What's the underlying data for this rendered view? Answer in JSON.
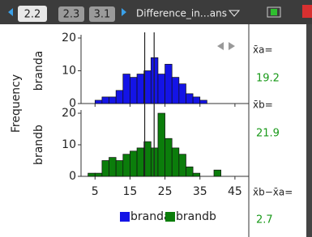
{
  "tabs": [
    "2.2",
    "2.3",
    "3.1"
  ],
  "document_title": "Difference_in…ans",
  "y_label": "Frequency",
  "chart_data": [
    {
      "type": "histogram",
      "bins": [
        5,
        7,
        9,
        11,
        13,
        15,
        17,
        19,
        21,
        23,
        25,
        27,
        29,
        31,
        33,
        35,
        37
      ],
      "series": [
        {
          "name": "branda",
          "color": "#1414e6",
          "values": [
            1,
            2,
            2,
            4,
            9,
            8,
            9,
            10,
            14,
            9,
            12,
            8,
            6,
            3,
            2,
            1
          ]
        }
      ],
      "xlim": [
        1,
        48.5
      ],
      "xticks": [
        5,
        15,
        25,
        35,
        45
      ],
      "ylim": [
        0,
        20
      ],
      "yticks": [
        0,
        10,
        20
      ]
    },
    {
      "type": "histogram",
      "bins": [
        3,
        5,
        7,
        9,
        11,
        13,
        15,
        17,
        19,
        21,
        23,
        25,
        27,
        29,
        31,
        33,
        35,
        37,
        39,
        41
      ],
      "series": [
        {
          "name": "brandb",
          "color": "#0b7d0b",
          "values": [
            1,
            1,
            5,
            6,
            5,
            7,
            8,
            9,
            11,
            9,
            20,
            12,
            9,
            7,
            3,
            1,
            0,
            0,
            2
          ]
        }
      ],
      "xlim": [
        1,
        48.5
      ],
      "xticks": [
        5,
        15,
        25,
        35,
        45
      ],
      "ylim": [
        0,
        20
      ],
      "yticks": [
        0,
        10,
        20
      ]
    }
  ],
  "notes": [
    {
      "label": "x̄a=",
      "value": 19.2
    },
    {
      "label": "x̄b=",
      "value": 21.9
    },
    {
      "label": "x̄b−x̄a=",
      "value": 2.7
    }
  ]
}
